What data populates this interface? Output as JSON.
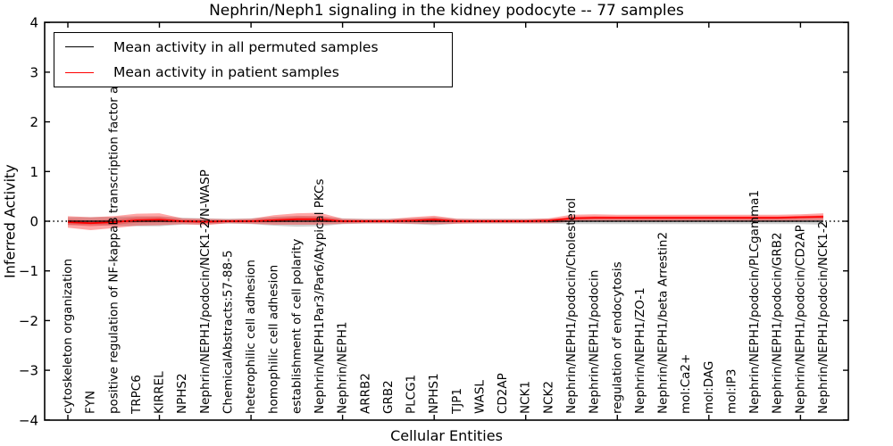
{
  "figure": {
    "title": "Nephrin/Neph1 signaling in the kidney podocyte -- 77 samples",
    "background": "#ffffff"
  },
  "legend": {
    "items": [
      {
        "label": "Mean activity in all permuted samples",
        "color": "#000000"
      },
      {
        "label": "Mean activity in patient samples",
        "color": "#ff0000"
      }
    ],
    "position": "upper-left"
  },
  "chart_data": {
    "type": "line",
    "title": "Nephrin/Neph1 signaling in the kidney podocyte -- 77 samples",
    "xlabel": "Cellular Entities",
    "ylabel": "Inferred Activity",
    "ylim": [
      -4,
      4
    ],
    "yticks": [
      4,
      3,
      2,
      1,
      0,
      -1,
      -2,
      -3,
      -4
    ],
    "ytick_labels": [
      "4",
      "3",
      "2",
      "1",
      "0",
      "−1",
      "−2",
      "−3",
      "−4"
    ],
    "grid": false,
    "legend_position": "upper left",
    "x_tick_label_rotation": 90,
    "x_major_tick_every": 4,
    "zero_reference_line": {
      "style": "dotted",
      "color": "#000000",
      "y": 0
    },
    "categories": [
      "cytoskeleton organization",
      "FYN",
      "positive regulation of NF-kappaB transcription factor a",
      "TRPC6",
      "KIRREL",
      "NPHS2",
      "Nephrin/NEPH1/podocin/NCK1-2/N-WASP",
      "ChemicalAbstracts:57-88-5",
      "heterophilic cell adhesion",
      "homophilic cell adhesion",
      "establishment of cell polarity",
      "Nephrin/NEPH1Par3/Par6/Atypical PKCs",
      "Nephrin/NEPH1",
      "ARRB2",
      "GRB2",
      "PLCG1",
      "NPHS1",
      "TJP1",
      "WASL",
      "CD2AP",
      "NCK1",
      "NCK2",
      "Nephrin/NEPH1/podocin/Cholesterol",
      "Nephrin/NEPH1/podocin",
      "regulation of endocytosis",
      "Nephrin/NEPH1/ZO-1",
      "Nephrin/NEPH1/beta Arrestin2",
      "mol:Ca2+",
      "mol:DAG",
      "mol:IP3",
      "Nephrin/NEPH1/podocin/PLCgamma1",
      "Nephrin/NEPH1/podocin/GRB2",
      "Nephrin/NEPH1/podocin/CD2AP",
      "Nephrin/NEPH1/podocin/NCK1-2"
    ],
    "series": [
      {
        "name": "Mean activity in all permuted samples",
        "color": "#000000",
        "line_style": "solid",
        "band_color": "#999999",
        "band_opacity": 0.45,
        "values": [
          0,
          0,
          0,
          0,
          0,
          0,
          0,
          0,
          0,
          0,
          0,
          0,
          0,
          0,
          0,
          0,
          0,
          0,
          0,
          0,
          0,
          0,
          0,
          0,
          0,
          0,
          0,
          0,
          0,
          0,
          0,
          0,
          0,
          0
        ],
        "band_halfwidth": [
          0.08,
          0.08,
          0.09,
          0.1,
          0.1,
          0.07,
          0.06,
          0.05,
          0.06,
          0.09,
          0.11,
          0.1,
          0.06,
          0.05,
          0.05,
          0.06,
          0.08,
          0.05,
          0.05,
          0.05,
          0.05,
          0.05,
          0.06,
          0.06,
          0.06,
          0.06,
          0.06,
          0.06,
          0.06,
          0.06,
          0.06,
          0.06,
          0.06,
          0.07
        ]
      },
      {
        "name": "Mean activity in patient samples",
        "color": "#ff0000",
        "line_style": "solid",
        "band_color": "#ff0000",
        "band_opacity": 0.35,
        "values": [
          -0.02,
          -0.04,
          -0.02,
          0.02,
          0.03,
          0.0,
          -0.01,
          0.0,
          0.0,
          0.02,
          0.04,
          0.04,
          0.0,
          0.0,
          0.0,
          0.01,
          0.03,
          0.0,
          0.0,
          0.0,
          0.0,
          0.01,
          0.06,
          0.07,
          0.07,
          0.07,
          0.07,
          0.07,
          0.07,
          0.07,
          0.07,
          0.07,
          0.08,
          0.09
        ],
        "band_upper": [
          0.1,
          0.08,
          0.1,
          0.15,
          0.16,
          0.06,
          0.05,
          0.04,
          0.05,
          0.12,
          0.16,
          0.17,
          0.05,
          0.04,
          0.04,
          0.08,
          0.11,
          0.05,
          0.04,
          0.04,
          0.04,
          0.06,
          0.13,
          0.14,
          0.13,
          0.13,
          0.13,
          0.13,
          0.13,
          0.13,
          0.13,
          0.13,
          0.14,
          0.16
        ],
        "band_lower": [
          -0.13,
          -0.18,
          -0.14,
          -0.09,
          -0.08,
          -0.06,
          -0.08,
          -0.04,
          -0.05,
          -0.07,
          -0.07,
          -0.07,
          -0.05,
          -0.04,
          -0.04,
          -0.05,
          -0.06,
          -0.05,
          -0.04,
          -0.04,
          -0.04,
          -0.04,
          -0.01,
          0.0,
          0.0,
          0.0,
          0.0,
          0.0,
          0.0,
          0.0,
          0.0,
          0.0,
          0.01,
          0.02
        ]
      }
    ]
  }
}
